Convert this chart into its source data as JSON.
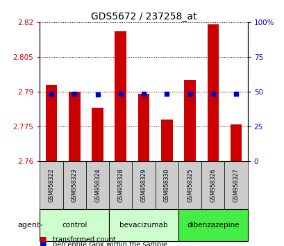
{
  "title": "GDS5672 / 237258_at",
  "samples": [
    "GSM958322",
    "GSM958323",
    "GSM958324",
    "GSM958328",
    "GSM958329",
    "GSM958330",
    "GSM958325",
    "GSM958326",
    "GSM958327"
  ],
  "transformed_count": [
    2.793,
    2.79,
    2.783,
    2.816,
    2.789,
    2.778,
    2.795,
    2.819,
    2.776
  ],
  "percentile_rank": [
    48.7,
    48.5,
    48.3,
    48.7,
    48.5,
    48.4,
    48.6,
    48.6,
    48.5
  ],
  "ylim_left": [
    2.76,
    2.82
  ],
  "yticks_left": [
    2.76,
    2.775,
    2.79,
    2.805,
    2.82
  ],
  "ytick_labels_left": [
    "2.76",
    "2.775",
    "2.79",
    "2.805",
    "2.82"
  ],
  "ylim_right": [
    0,
    100
  ],
  "yticks_right": [
    0,
    25,
    50,
    75,
    100
  ],
  "ytick_labels_right": [
    "0",
    "25",
    "50",
    "75",
    "100%"
  ],
  "bar_bottom": 2.76,
  "bar_color": "#cc0000",
  "percentile_color": "#0000cc",
  "group_info": [
    {
      "start": 0,
      "end": 2,
      "label": "control",
      "color": "#ccffcc"
    },
    {
      "start": 3,
      "end": 5,
      "label": "bevacizumab",
      "color": "#ccffcc"
    },
    {
      "start": 6,
      "end": 8,
      "label": "dibenzazepine",
      "color": "#44ee44"
    }
  ],
  "agent_label": "agent",
  "legend_items": [
    {
      "label": "transformed count",
      "color": "#cc0000"
    },
    {
      "label": "percentile rank within the sample",
      "color": "#0000cc"
    }
  ],
  "tick_color_left": "#cc0000",
  "tick_color_right": "#0000cc",
  "bar_width": 0.5,
  "percentile_marker_size": 5,
  "sample_box_color": "#cccccc",
  "figure_bg": "#ffffff"
}
